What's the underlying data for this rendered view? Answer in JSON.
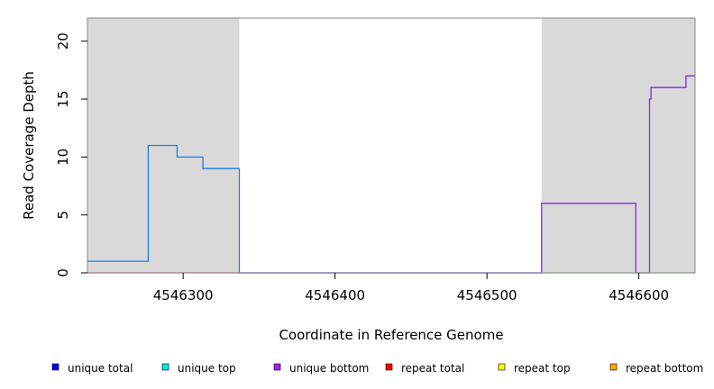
{
  "chart_data": {
    "type": "line",
    "title": "",
    "xlabel": "Coordinate in Reference Genome",
    "ylabel": "Read Coverage Depth",
    "xlim": [
      4546237,
      4546637
    ],
    "ylim": [
      0,
      22
    ],
    "x_ticks": [
      4546300,
      4546400,
      4546500,
      4546600
    ],
    "y_ticks": [
      0,
      5,
      10,
      15,
      20
    ],
    "grid": false,
    "shaded_regions": [
      {
        "x_start": 4546237,
        "x_end": 4546337,
        "color": "#d9d9d9"
      },
      {
        "x_start": 4546536,
        "x_end": 4546637,
        "color": "#d9d9d9"
      }
    ],
    "series": [
      {
        "name": "",
        "color": "#1f7fe0",
        "step": true,
        "points": [
          [
            4546237,
            1
          ],
          [
            4546277,
            1
          ],
          [
            4546277,
            11
          ],
          [
            4546296,
            11
          ],
          [
            4546296,
            10
          ],
          [
            4546313,
            10
          ],
          [
            4546313,
            9
          ],
          [
            4546337,
            9
          ],
          [
            4546337,
            0
          ],
          [
            4546536,
            0
          ]
        ]
      },
      {
        "name": "",
        "color": "#7b2ee0",
        "step": true,
        "points": [
          [
            4546337,
            0
          ],
          [
            4546536,
            0
          ],
          [
            4546536,
            6
          ],
          [
            4546598,
            6
          ],
          [
            4546598,
            0
          ],
          [
            4546607,
            0
          ],
          [
            4546607,
            15
          ],
          [
            4546608,
            15
          ],
          [
            4546608,
            16
          ],
          [
            4546631,
            16
          ],
          [
            4546631,
            17
          ],
          [
            4546637,
            17
          ]
        ]
      },
      {
        "name": "",
        "color": "#e0506e",
        "step": true,
        "points": [
          [
            4546237,
            0
          ],
          [
            4546337,
            0
          ]
        ]
      },
      {
        "name": "",
        "color": "#7fd07f",
        "step": true,
        "points": [
          [
            4546536,
            0
          ],
          [
            4546637,
            0
          ]
        ]
      }
    ],
    "legend": {
      "placement": "bottom",
      "items": [
        {
          "label": "unique total",
          "color": "#0000ff"
        },
        {
          "label": "unique top",
          "color": "#00e5e5"
        },
        {
          "label": "unique bottom",
          "color": "#a020f0"
        },
        {
          "label": "repeat total",
          "color": "#ff0000"
        },
        {
          "label": "repeat top",
          "color": "#ffff00"
        },
        {
          "label": "repeat bottom",
          "color": "#ffa500"
        }
      ]
    }
  }
}
